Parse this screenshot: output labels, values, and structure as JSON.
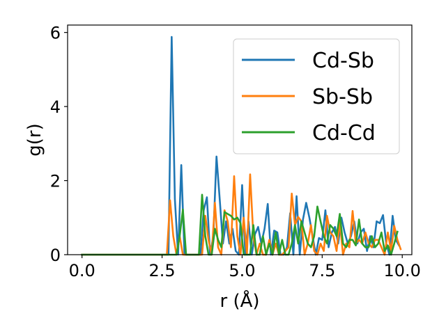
{
  "chart_data": {
    "type": "line",
    "title": "",
    "xlabel": "r (Å)",
    "ylabel": "g(r)",
    "xlim": [
      -0.45,
      10.3
    ],
    "ylim": [
      0,
      6.2
    ],
    "xticks": [
      0.0,
      2.5,
      5.0,
      7.5,
      10.0
    ],
    "xtick_labels": [
      "0.0",
      "2.5",
      "5.0",
      "7.5",
      "10.0"
    ],
    "yticks": [
      0,
      2,
      4,
      6
    ],
    "ytick_labels": [
      "0",
      "2",
      "4",
      "6"
    ],
    "legend_position": "upper-right",
    "grid": false,
    "series": [
      {
        "name": "Cd-Sb",
        "color": "#1f77b4",
        "points": [
          [
            0.0,
            0
          ],
          [
            2.7,
            0
          ],
          [
            2.8,
            5.88
          ],
          [
            2.9,
            1.5
          ],
          [
            3.0,
            0
          ],
          [
            3.1,
            2.42
          ],
          [
            3.2,
            0
          ],
          [
            3.7,
            0
          ],
          [
            3.8,
            1.2
          ],
          [
            3.9,
            1.55
          ],
          [
            4.0,
            0
          ],
          [
            4.1,
            0.5
          ],
          [
            4.2,
            2.65
          ],
          [
            4.3,
            1.5
          ],
          [
            4.4,
            0.3
          ],
          [
            4.5,
            0.9
          ],
          [
            4.6,
            0.3
          ],
          [
            4.7,
            0.7
          ],
          [
            4.8,
            0.1
          ],
          [
            4.9,
            0
          ],
          [
            5.0,
            1.88
          ],
          [
            5.1,
            0
          ],
          [
            5.2,
            0.9
          ],
          [
            5.3,
            0
          ],
          [
            5.4,
            0.55
          ],
          [
            5.5,
            0.75
          ],
          [
            5.6,
            0.3
          ],
          [
            5.7,
            0.7
          ],
          [
            5.8,
            1.37
          ],
          [
            5.9,
            0
          ],
          [
            6.0,
            0.65
          ],
          [
            6.1,
            0.6
          ],
          [
            6.2,
            0
          ],
          [
            6.3,
            0
          ],
          [
            6.4,
            0.2
          ],
          [
            6.5,
            1.12
          ],
          [
            6.6,
            0
          ],
          [
            6.7,
            1.58
          ],
          [
            6.8,
            0
          ],
          [
            6.9,
            0.95
          ],
          [
            7.0,
            1.4
          ],
          [
            7.1,
            1.0
          ],
          [
            7.2,
            0.5
          ],
          [
            7.3,
            0
          ],
          [
            7.4,
            0.45
          ],
          [
            7.5,
            0.4
          ],
          [
            7.6,
            1.2
          ],
          [
            7.7,
            0.2
          ],
          [
            7.8,
            0.6
          ],
          [
            7.9,
            0.75
          ],
          [
            8.0,
            0.3
          ],
          [
            8.1,
            1.0
          ],
          [
            8.2,
            0.6
          ],
          [
            8.3,
            0.3
          ],
          [
            8.4,
            0.5
          ],
          [
            8.5,
            0.9
          ],
          [
            8.6,
            0.3
          ],
          [
            8.7,
            0.6
          ],
          [
            8.8,
            0.7
          ],
          [
            8.9,
            0.1
          ],
          [
            9.0,
            0.5
          ],
          [
            9.1,
            0.2
          ],
          [
            9.2,
            0.9
          ],
          [
            9.3,
            0.85
          ],
          [
            9.4,
            1.07
          ],
          [
            9.5,
            0.3
          ],
          [
            9.6,
            0
          ],
          [
            9.7,
            1.05
          ],
          [
            9.8,
            0.4
          ],
          [
            9.9,
            0.25
          ]
        ]
      },
      {
        "name": "Sb-Sb",
        "color": "#ff7f0e",
        "points": [
          [
            0.0,
            0
          ],
          [
            2.65,
            0
          ],
          [
            2.75,
            1.47
          ],
          [
            2.85,
            0.5
          ],
          [
            2.95,
            0
          ],
          [
            3.05,
            0.5
          ],
          [
            3.15,
            0
          ],
          [
            3.75,
            0
          ],
          [
            3.85,
            1.05
          ],
          [
            3.95,
            0.4
          ],
          [
            4.05,
            0
          ],
          [
            4.15,
            1.4
          ],
          [
            4.25,
            0.2
          ],
          [
            4.35,
            0
          ],
          [
            4.45,
            1.2
          ],
          [
            4.55,
            0.9
          ],
          [
            4.65,
            0.2
          ],
          [
            4.75,
            2.12
          ],
          [
            4.85,
            0.5
          ],
          [
            4.95,
            0
          ],
          [
            5.05,
            1.0
          ],
          [
            5.15,
            0
          ],
          [
            5.25,
            2.17
          ],
          [
            5.35,
            0.5
          ],
          [
            5.45,
            0
          ],
          [
            5.55,
            0.3
          ],
          [
            5.65,
            0
          ],
          [
            5.75,
            0
          ],
          [
            5.85,
            0.4
          ],
          [
            5.95,
            0
          ],
          [
            6.05,
            0.3
          ],
          [
            6.15,
            0
          ],
          [
            6.25,
            0
          ],
          [
            6.35,
            0.1
          ],
          [
            6.45,
            0.2
          ],
          [
            6.55,
            1.65
          ],
          [
            6.65,
            0.8
          ],
          [
            6.75,
            1.02
          ],
          [
            6.85,
            0.9
          ],
          [
            6.95,
            0
          ],
          [
            7.05,
            0.3
          ],
          [
            7.15,
            0.8
          ],
          [
            7.25,
            0.1
          ],
          [
            7.35,
            0
          ],
          [
            7.45,
            0.3
          ],
          [
            7.55,
            0.1
          ],
          [
            7.65,
            1.05
          ],
          [
            7.75,
            0.6
          ],
          [
            7.85,
            0.5
          ],
          [
            7.95,
            0.1
          ],
          [
            8.05,
            0.9
          ],
          [
            8.15,
            0
          ],
          [
            8.25,
            0.3
          ],
          [
            8.35,
            0.2
          ],
          [
            8.45,
            1.18
          ],
          [
            8.55,
            0.3
          ],
          [
            8.65,
            0.4
          ],
          [
            8.75,
            0.3
          ],
          [
            8.85,
            0.6
          ],
          [
            8.95,
            0.3
          ],
          [
            9.05,
            0.2
          ],
          [
            9.15,
            0.4
          ],
          [
            9.25,
            0.4
          ],
          [
            9.35,
            0.2
          ],
          [
            9.45,
            0
          ],
          [
            9.55,
            0.6
          ],
          [
            9.65,
            0.1
          ],
          [
            9.75,
            0.78
          ],
          [
            9.85,
            0.4
          ],
          [
            9.95,
            0.15
          ]
        ]
      },
      {
        "name": "Cd-Cd",
        "color": "#2ca02c",
        "points": [
          [
            0.0,
            0
          ],
          [
            2.95,
            0
          ],
          [
            3.05,
            0.5
          ],
          [
            3.15,
            1.22
          ],
          [
            3.25,
            0
          ],
          [
            3.65,
            0
          ],
          [
            3.75,
            1.62
          ],
          [
            3.85,
            0.5
          ],
          [
            3.95,
            0
          ],
          [
            4.05,
            0
          ],
          [
            4.15,
            0.7
          ],
          [
            4.25,
            0.4
          ],
          [
            4.35,
            0.2
          ],
          [
            4.45,
            1.15
          ],
          [
            4.55,
            1.1
          ],
          [
            4.65,
            1.05
          ],
          [
            4.75,
            0.95
          ],
          [
            4.85,
            1.0
          ],
          [
            4.95,
            0.85
          ],
          [
            5.05,
            0
          ],
          [
            5.15,
            0
          ],
          [
            5.25,
            0
          ],
          [
            5.35,
            0.8
          ],
          [
            5.45,
            0
          ],
          [
            5.55,
            0
          ],
          [
            5.65,
            0.5
          ],
          [
            5.75,
            0
          ],
          [
            5.85,
            0.3
          ],
          [
            5.95,
            0
          ],
          [
            6.05,
            0.6
          ],
          [
            6.15,
            0
          ],
          [
            6.25,
            0.4
          ],
          [
            6.35,
            0
          ],
          [
            6.45,
            0
          ],
          [
            6.55,
            0.3
          ],
          [
            6.65,
            0.8
          ],
          [
            6.75,
            0.3
          ],
          [
            6.85,
            0.9
          ],
          [
            6.95,
            0.6
          ],
          [
            7.05,
            0.3
          ],
          [
            7.15,
            0.2
          ],
          [
            7.25,
            0.5
          ],
          [
            7.35,
            1.3
          ],
          [
            7.45,
            0.9
          ],
          [
            7.55,
            0.5
          ],
          [
            7.65,
            0.3
          ],
          [
            7.75,
            0.8
          ],
          [
            7.85,
            0.7
          ],
          [
            7.95,
            0.5
          ],
          [
            8.05,
            1.1
          ],
          [
            8.15,
            0.3
          ],
          [
            8.25,
            0.2
          ],
          [
            8.35,
            0.4
          ],
          [
            8.45,
            0.4
          ],
          [
            8.55,
            0.25
          ],
          [
            8.65,
            0.95
          ],
          [
            8.75,
            0.3
          ],
          [
            8.85,
            0.2
          ],
          [
            8.95,
            0.2
          ],
          [
            9.05,
            0.5
          ],
          [
            9.15,
            0.2
          ],
          [
            9.25,
            0.3
          ],
          [
            9.35,
            0.6
          ],
          [
            9.45,
            0.1
          ],
          [
            9.55,
            0.25
          ],
          [
            9.65,
            0
          ],
          [
            9.75,
            0.3
          ],
          [
            9.85,
            0.62
          ]
        ]
      }
    ]
  }
}
